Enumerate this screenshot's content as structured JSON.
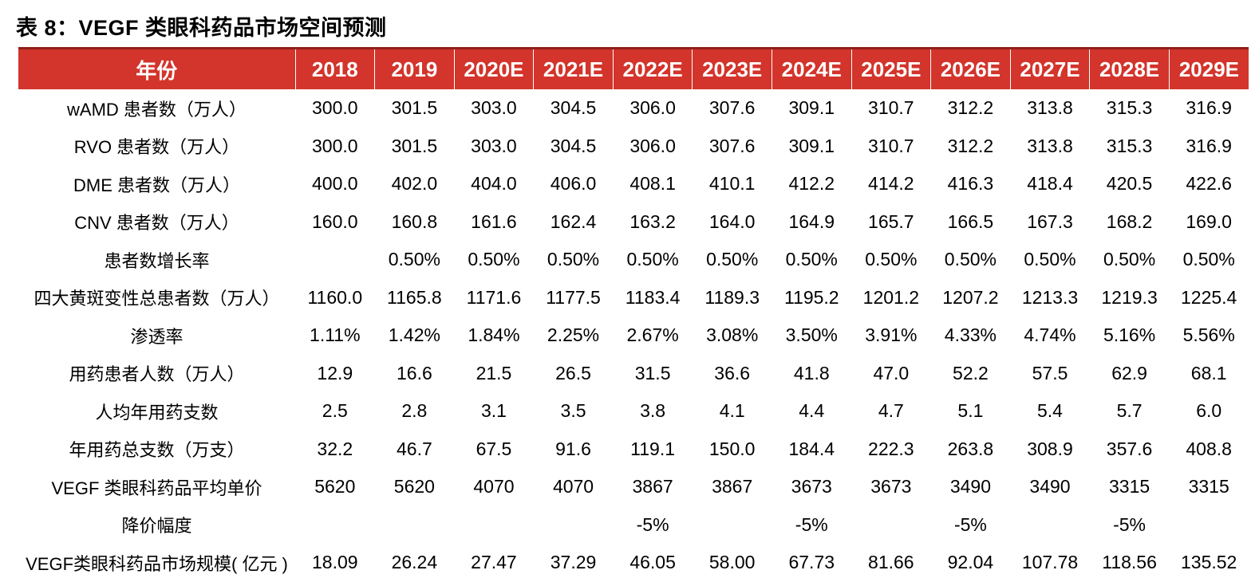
{
  "page": {
    "title": "表 8：VEGF 类眼科药品市场空间预测"
  },
  "colors": {
    "header_bg": "#d3342b",
    "header_top_border": "#8f1f18",
    "header_text": "#ffffff",
    "body_text": "#000000",
    "background": "#ffffff"
  },
  "chart_data": {
    "type": "table",
    "title": "表 8：VEGF 类眼科药品市场空间预测",
    "columns": [
      "年份",
      "2018",
      "2019",
      "2020E",
      "2021E",
      "2022E",
      "2023E",
      "2024E",
      "2025E",
      "2026E",
      "2027E",
      "2028E",
      "2029E"
    ],
    "rows": [
      {
        "label": "wAMD 患者数（万人）",
        "values": [
          "300.0",
          "301.5",
          "303.0",
          "304.5",
          "306.0",
          "307.6",
          "309.1",
          "310.7",
          "312.2",
          "313.8",
          "315.3",
          "316.9"
        ]
      },
      {
        "label": "RVO 患者数（万人）",
        "values": [
          "300.0",
          "301.5",
          "303.0",
          "304.5",
          "306.0",
          "307.6",
          "309.1",
          "310.7",
          "312.2",
          "313.8",
          "315.3",
          "316.9"
        ]
      },
      {
        "label": "DME 患者数（万人）",
        "values": [
          "400.0",
          "402.0",
          "404.0",
          "406.0",
          "408.1",
          "410.1",
          "412.2",
          "414.2",
          "416.3",
          "418.4",
          "420.5",
          "422.6"
        ]
      },
      {
        "label": "CNV 患者数（万人）",
        "values": [
          "160.0",
          "160.8",
          "161.6",
          "162.4",
          "163.2",
          "164.0",
          "164.9",
          "165.7",
          "166.5",
          "167.3",
          "168.2",
          "169.0"
        ]
      },
      {
        "label": "患者数增长率",
        "values": [
          "",
          "0.50%",
          "0.50%",
          "0.50%",
          "0.50%",
          "0.50%",
          "0.50%",
          "0.50%",
          "0.50%",
          "0.50%",
          "0.50%",
          "0.50%"
        ]
      },
      {
        "label": "四大黄斑变性总患者数（万人）",
        "values": [
          "1160.0",
          "1165.8",
          "1171.6",
          "1177.5",
          "1183.4",
          "1189.3",
          "1195.2",
          "1201.2",
          "1207.2",
          "1213.3",
          "1219.3",
          "1225.4"
        ]
      },
      {
        "label": "渗透率",
        "values": [
          "1.11%",
          "1.42%",
          "1.84%",
          "2.25%",
          "2.67%",
          "3.08%",
          "3.50%",
          "3.91%",
          "4.33%",
          "4.74%",
          "5.16%",
          "5.56%"
        ]
      },
      {
        "label": "用药患者人数（万人）",
        "values": [
          "12.9",
          "16.6",
          "21.5",
          "26.5",
          "31.5",
          "36.6",
          "41.8",
          "47.0",
          "52.2",
          "57.5",
          "62.9",
          "68.1"
        ]
      },
      {
        "label": "人均年用药支数",
        "values": [
          "2.5",
          "2.8",
          "3.1",
          "3.5",
          "3.8",
          "4.1",
          "4.4",
          "4.7",
          "5.1",
          "5.4",
          "5.7",
          "6.0"
        ]
      },
      {
        "label": "年用药总支数（万支）",
        "values": [
          "32.2",
          "46.7",
          "67.5",
          "91.6",
          "119.1",
          "150.0",
          "184.4",
          "222.3",
          "263.8",
          "308.9",
          "357.6",
          "408.8"
        ]
      },
      {
        "label": "VEGF 类眼科药品平均单价",
        "values": [
          "5620",
          "5620",
          "4070",
          "4070",
          "3867",
          "3867",
          "3673",
          "3673",
          "3490",
          "3490",
          "3315",
          "3315"
        ]
      },
      {
        "label": "降价幅度",
        "values": [
          "",
          "",
          "",
          "",
          "-5%",
          "",
          "-5%",
          "",
          "-5%",
          "",
          "-5%",
          ""
        ]
      },
      {
        "label": "VEGF类眼科药品市场规模( 亿元 )",
        "values": [
          "18.09",
          "26.24",
          "27.47",
          "37.29",
          "46.05",
          "58.00",
          "67.73",
          "81.66",
          "92.04",
          "107.78",
          "118.56",
          "135.52"
        ]
      }
    ]
  }
}
